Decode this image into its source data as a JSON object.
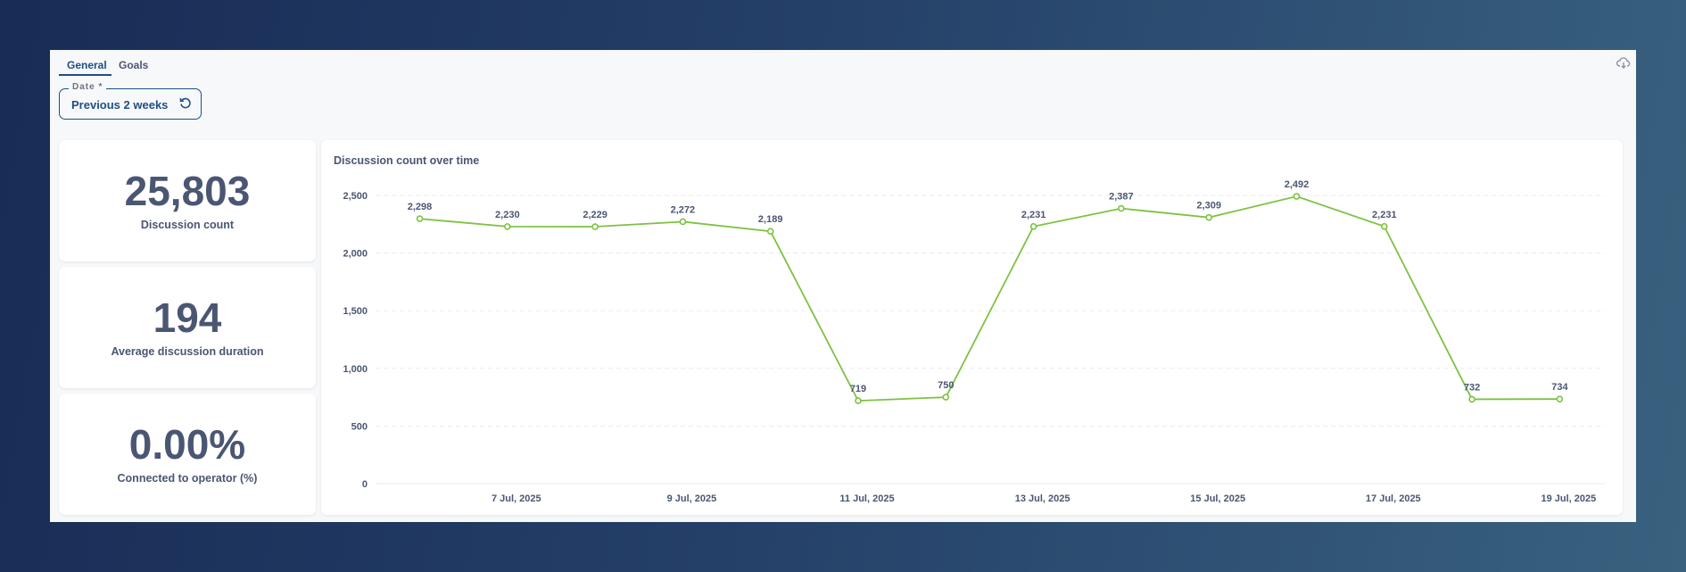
{
  "tabs": [
    {
      "label": "General",
      "active": true
    },
    {
      "label": "Goals",
      "active": false
    }
  ],
  "date_filter": {
    "label": "Date *",
    "value": "Previous 2 weeks"
  },
  "kpis": [
    {
      "value": "25,803",
      "label": "Discussion count"
    },
    {
      "value": "194",
      "label": "Average discussion duration"
    },
    {
      "value": "0.00%",
      "label": "Connected to operator (%)"
    }
  ],
  "colors": {
    "accent": "#1d4f82",
    "line": "#7dc242",
    "text": "#4a5672"
  },
  "chart_data": {
    "type": "line",
    "title": "Discussion count over time",
    "x": [
      "6 Jul, 2025",
      "7 Jul, 2025",
      "8 Jul, 2025",
      "9 Jul, 2025",
      "10 Jul, 2025",
      "11 Jul, 2025",
      "12 Jul, 2025",
      "13 Jul, 2025",
      "14 Jul, 2025",
      "15 Jul, 2025",
      "16 Jul, 2025",
      "17 Jul, 2025",
      "18 Jul, 2025",
      "19 Jul, 2025"
    ],
    "values": [
      2298,
      2230,
      2229,
      2272,
      2189,
      719,
      750,
      2231,
      2387,
      2309,
      2492,
      2231,
      732,
      734
    ],
    "data_labels": [
      "2,298",
      "2,230",
      "2,229",
      "2,272",
      "2,189",
      "719",
      "750",
      "2,231",
      "2,387",
      "2,309",
      "2,492",
      "2,231",
      "732",
      "734"
    ],
    "x_tick_labels": [
      "7 Jul, 2025",
      "9 Jul, 2025",
      "11 Jul, 2025",
      "13 Jul, 2025",
      "15 Jul, 2025",
      "17 Jul, 2025",
      "19 Jul, 2025"
    ],
    "y_ticks": [
      0,
      500,
      1000,
      1500,
      2000,
      2500
    ],
    "y_tick_labels": [
      "0",
      "500",
      "1,000",
      "1,500",
      "2,000",
      "2,500"
    ],
    "ylim": [
      0,
      2500
    ],
    "grid": true,
    "legend": "none"
  }
}
